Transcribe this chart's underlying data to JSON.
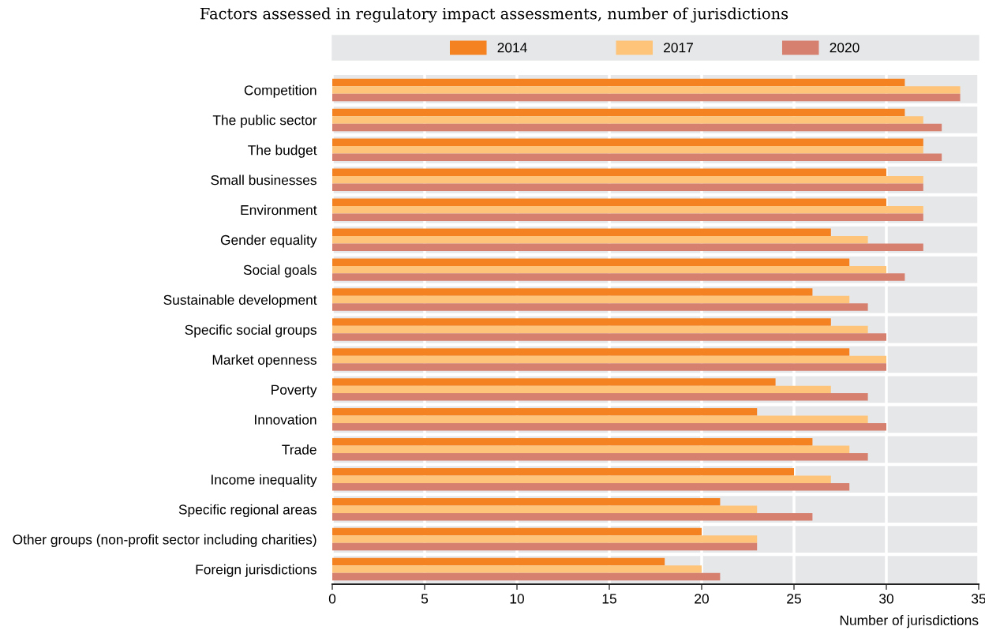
{
  "chart_data": {
    "type": "bar",
    "orientation": "horizontal",
    "subtitle": "Factors assessed in regulatory impact assessments, number of jurisdictions",
    "xlabel": "Number of jurisdictions",
    "categories": [
      "Competition",
      "The public sector",
      "The budget",
      "Small businesses",
      "Environment",
      "Gender equality",
      "Social goals",
      "Sustainable development",
      "Specific social groups",
      "Market openness",
      "Poverty",
      "Innovation",
      "Trade",
      "Income inequality",
      "Specific regional areas",
      "Other groups (non-profit sector including charities)",
      "Foreign jurisdictions"
    ],
    "series": [
      {
        "name": "2014",
        "color": "#f58220",
        "values": [
          31,
          31,
          32,
          30,
          30,
          27,
          28,
          26,
          27,
          28,
          24,
          23,
          26,
          25,
          21,
          20,
          18
        ]
      },
      {
        "name": "2017",
        "color": "#fdc47a",
        "values": [
          34,
          32,
          32,
          32,
          32,
          29,
          30,
          28,
          29,
          30,
          27,
          29,
          28,
          27,
          23,
          23,
          20
        ]
      },
      {
        "name": "2020",
        "color": "#d68170",
        "values": [
          34,
          33,
          33,
          32,
          32,
          32,
          31,
          29,
          30,
          30,
          29,
          30,
          29,
          28,
          26,
          23,
          21
        ]
      }
    ],
    "xlim": [
      0,
      35
    ],
    "xticks": [
      0,
      5,
      10,
      15,
      20,
      25,
      30,
      35
    ],
    "grid": "x",
    "legend": "top"
  }
}
